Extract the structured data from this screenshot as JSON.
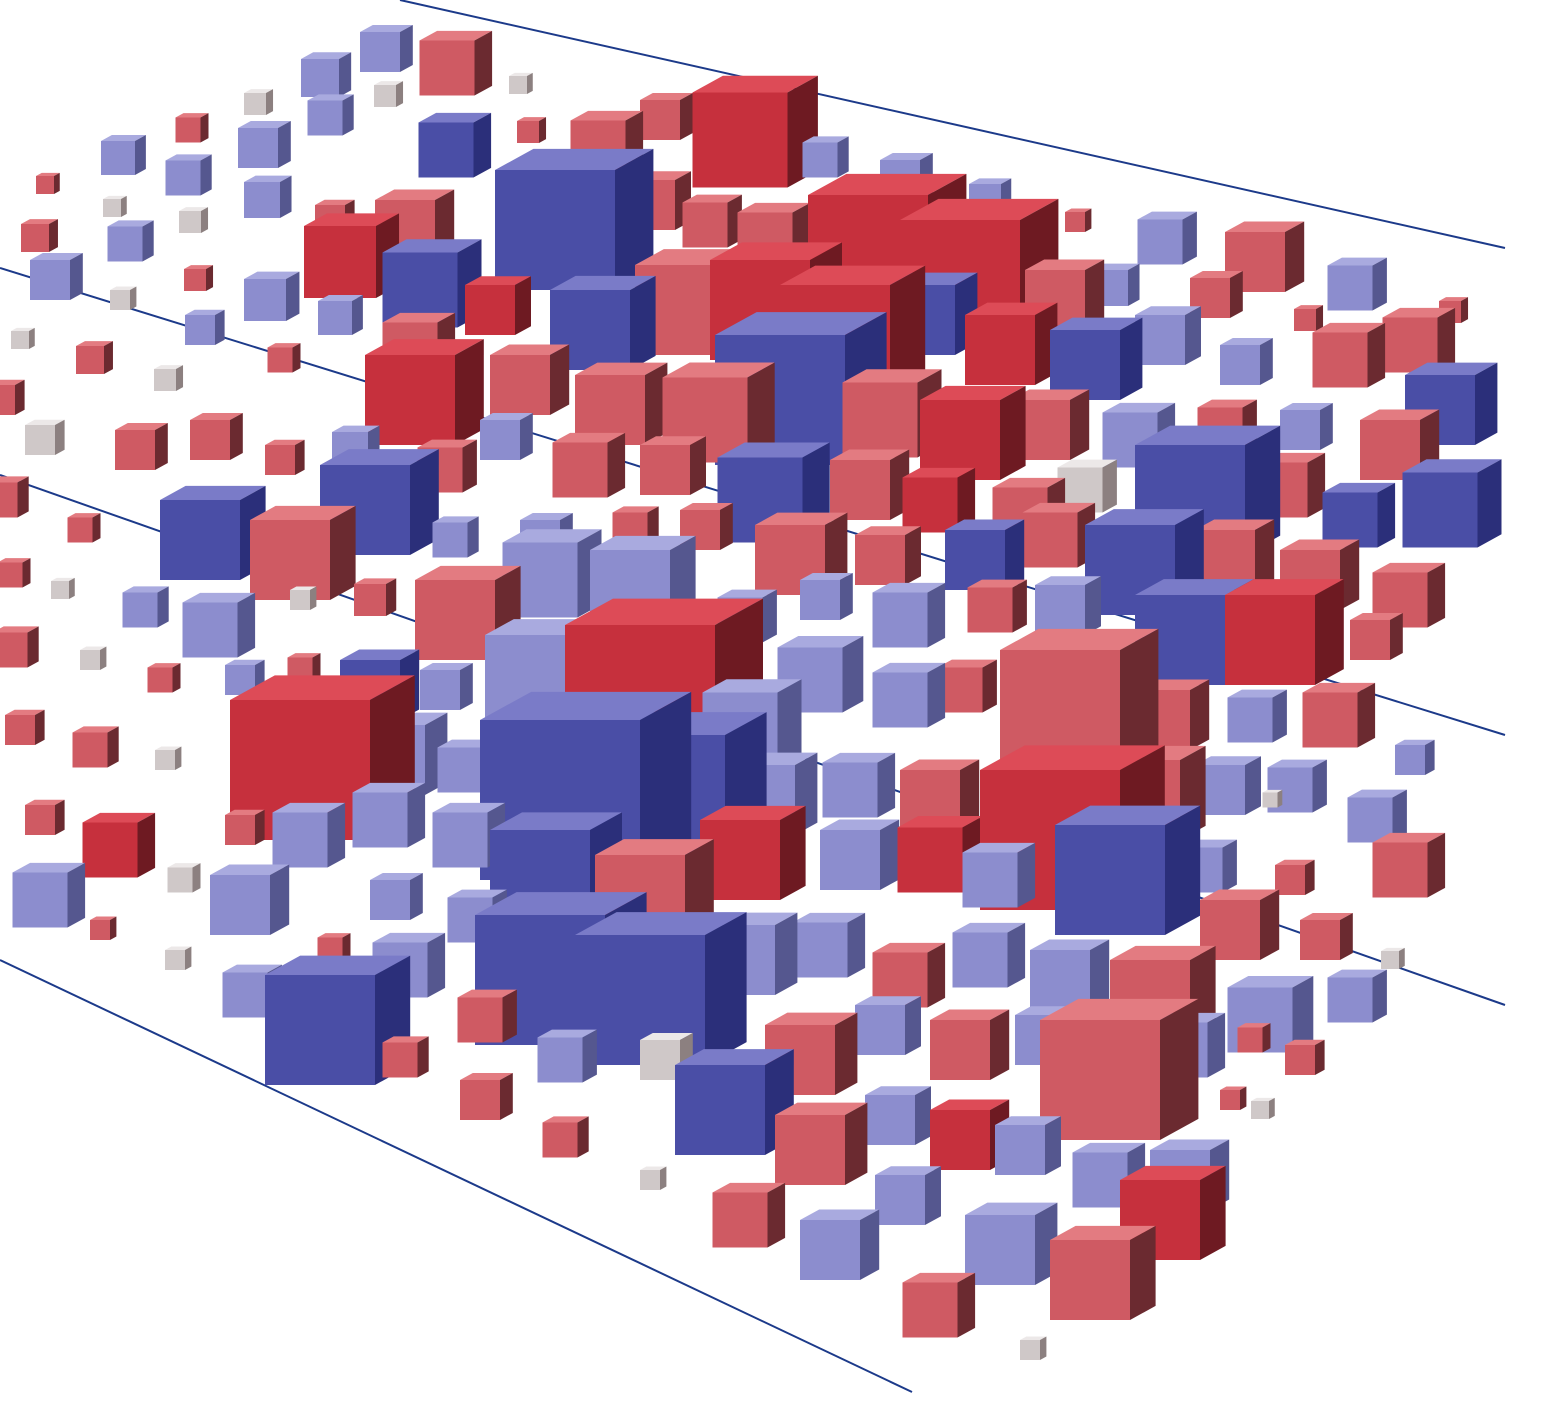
{
  "scene": {
    "background_color": "#ffffff",
    "edge_color": "#1c3a8a",
    "palette": {
      "blue_top": "#7a7bc8",
      "blue_front": "#4a4ea6",
      "blue_side": "#2b2f7a",
      "red_top": "#dd4b57",
      "red_front": "#c6303d",
      "red_side": "#6e1a22",
      "pale_top": "#ece8e8",
      "pale_front": "#cfc8c8",
      "pale_side": "#8c8080"
    }
  }
}
